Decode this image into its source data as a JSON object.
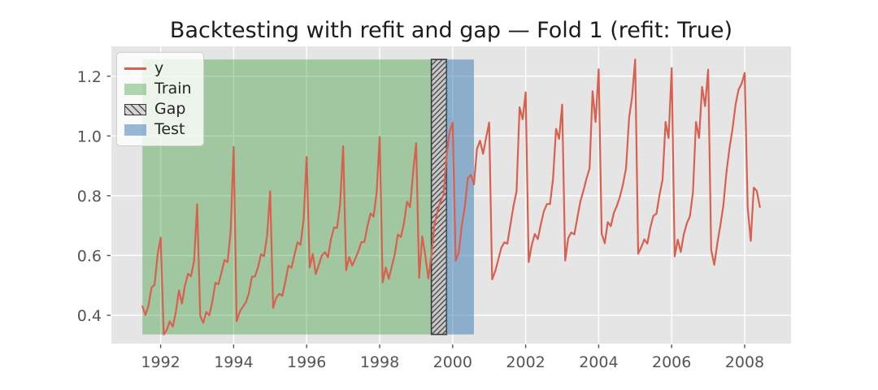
{
  "title": "Backtesting with refit and gap — Fold 1 (refit: True)",
  "colors": {
    "figure_bg": "#ffffff",
    "axes_bg": "#e5e5e5",
    "grid": "#ffffff",
    "line": "#d95f4e",
    "train_fill": "rgba(0,128,0,0.30)",
    "test_fill": "rgba(70,130,180,0.55)",
    "gap_fill": "#c8c8c8",
    "gap_hatch": "#4d4d4d",
    "gap_edge": "#3a3a3a",
    "tick_color": "#555555",
    "title_color": "#1c1c1c"
  },
  "legend": {
    "items": [
      {
        "label": "y",
        "type": "line"
      },
      {
        "label": "Train",
        "type": "train"
      },
      {
        "label": "Gap",
        "type": "gap"
      },
      {
        "label": "Test",
        "type": "test"
      }
    ]
  },
  "chart_data": {
    "type": "line",
    "title": "Backtesting with refit and gap — Fold 1 (refit: True)",
    "xlabel": "",
    "ylabel": "",
    "xlim": [
      1990.65,
      2009.27
    ],
    "ylim": [
      0.305,
      1.3
    ],
    "xticks": [
      1992,
      1994,
      1996,
      1998,
      2000,
      2002,
      2004,
      2006,
      2008
    ],
    "yticks": [
      0.4,
      0.6,
      0.8,
      1.0,
      1.2
    ],
    "grid": true,
    "legend_position": "upper-left",
    "x_start_year": 1991.5,
    "points_per_year": 12,
    "span_ymin": 0.336,
    "span_ymax": 1.256,
    "spans": [
      {
        "name": "Train",
        "from": 1991.5,
        "to": 1999.4167
      },
      {
        "name": "Gap",
        "from": 1999.4167,
        "to": 1999.8333
      },
      {
        "name": "Test",
        "from": 1999.8333,
        "to": 2000.5833
      }
    ],
    "series": [
      {
        "name": "y",
        "values": [
          0.43,
          0.401,
          0.432,
          0.493,
          0.502,
          0.603,
          0.66,
          0.336,
          0.351,
          0.38,
          0.362,
          0.411,
          0.483,
          0.439,
          0.499,
          0.539,
          0.531,
          0.584,
          0.771,
          0.398,
          0.375,
          0.411,
          0.4,
          0.446,
          0.509,
          0.504,
          0.543,
          0.585,
          0.578,
          0.68,
          0.963,
          0.38,
          0.412,
          0.428,
          0.443,
          0.473,
          0.529,
          0.53,
          0.56,
          0.604,
          0.598,
          0.668,
          0.815,
          0.425,
          0.459,
          0.472,
          0.465,
          0.513,
          0.566,
          0.559,
          0.602,
          0.644,
          0.636,
          0.722,
          0.93,
          0.56,
          0.605,
          0.538,
          0.569,
          0.6,
          0.611,
          0.594,
          0.654,
          0.694,
          0.692,
          0.772,
          0.966,
          0.551,
          0.595,
          0.566,
          0.59,
          0.614,
          0.645,
          0.646,
          0.698,
          0.741,
          0.73,
          0.81,
          0.997,
          0.51,
          0.56,
          0.522,
          0.564,
          0.605,
          0.67,
          0.662,
          0.708,
          0.78,
          0.762,
          0.88,
          0.976,
          0.525,
          0.664,
          0.601,
          0.523,
          0.6,
          0.702,
          0.748,
          0.781,
          0.803,
          0.934,
          1.015,
          1.045,
          0.583,
          0.61,
          0.7,
          0.764,
          0.859,
          0.87,
          0.838,
          0.957,
          0.984,
          0.94,
          0.995,
          1.045,
          0.52,
          0.548,
          0.586,
          0.626,
          0.644,
          0.64,
          0.704,
          0.765,
          0.815,
          1.096,
          1.056,
          1.146,
          0.578,
          0.635,
          0.672,
          0.655,
          0.705,
          0.748,
          0.772,
          0.772,
          0.857,
          1.024,
          0.99,
          1.105,
          0.583,
          0.659,
          0.677,
          0.671,
          0.727,
          0.781,
          0.817,
          0.857,
          0.892,
          1.15,
          1.047,
          1.223,
          0.673,
          0.641,
          0.712,
          0.698,
          0.743,
          0.766,
          0.797,
          0.838,
          0.892,
          1.06,
          1.13,
          1.256,
          0.606,
          0.628,
          0.654,
          0.64,
          0.694,
          0.733,
          0.74,
          0.802,
          0.854,
          1.047,
          0.993,
          1.227,
          0.597,
          0.653,
          0.612,
          0.671,
          0.708,
          0.731,
          0.812,
          1.047,
          0.993,
          1.164,
          1.1,
          1.222,
          0.619,
          0.569,
          0.639,
          0.699,
          0.768,
          0.876,
          0.959,
          1.023,
          1.105,
          1.155,
          1.175,
          1.211,
          0.761,
          0.649,
          0.827,
          0.816,
          0.762
        ]
      }
    ]
  }
}
